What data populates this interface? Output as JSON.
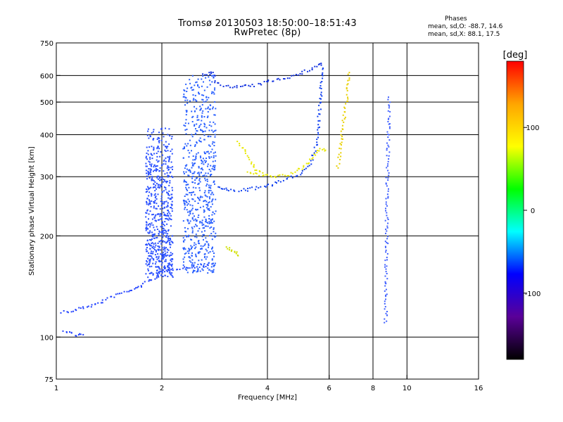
{
  "chart_data": {
    "type": "scatter",
    "title": "Tromsø 20130503 18:50:00–18:51:43",
    "subtitle": "RwPretec (8p)",
    "xlabel": "Frequency [MHz]",
    "ylabel": "Stationary phase Virtual Height [km]",
    "xscale": "log",
    "yscale": "log",
    "xlim": [
      1,
      16
    ],
    "ylim": [
      75,
      750
    ],
    "xticks": [
      1,
      2,
      4,
      6,
      8,
      10,
      16
    ],
    "xtick_labels": [
      "1",
      "2",
      "4",
      "6",
      "8",
      "10",
      "16"
    ],
    "xgrid": [
      2,
      4,
      6,
      8,
      10
    ],
    "yticks": [
      75,
      100,
      200,
      300,
      400,
      500,
      600,
      750
    ],
    "ytick_labels": [
      "75",
      "100",
      "200",
      "300",
      "400",
      "500",
      "600",
      "750"
    ],
    "ygrid": [
      100,
      200,
      300,
      400,
      500,
      600
    ],
    "grid": true,
    "colorbar": {
      "label": "[deg]",
      "range": [
        -180,
        180
      ],
      "ticks": [
        100,
        0,
        -100
      ],
      "tick_labels": [
        "100",
        "0",
        "-100"
      ],
      "colors": [
        "#ff0000",
        "#ffa500",
        "#ffff00",
        "#00ff00",
        "#00ffff",
        "#0000ff",
        "#5a0098",
        "#000000"
      ]
    },
    "stats": {
      "header": "Phases",
      "o_mode": "mean, sd,O: -88.7, 14.6",
      "x_mode": "mean, sd,X:  88.1, 17.5"
    },
    "series": [
      {
        "trace": [
          [
            1.04,
            119
          ],
          [
            1.1,
            119
          ],
          [
            1.2,
            123
          ],
          [
            1.3,
            125
          ],
          [
            1.4,
            130
          ],
          [
            1.5,
            134
          ],
          [
            1.6,
            137
          ],
          [
            1.7,
            140
          ],
          [
            1.8,
            145
          ],
          [
            1.9,
            150
          ],
          [
            2.0,
            156
          ],
          [
            2.2,
            160
          ],
          [
            2.5,
            162
          ],
          [
            2.8,
            165
          ]
        ],
        "color": "#2040ff"
      },
      {
        "trace": [
          [
            1.05,
            104
          ],
          [
            1.1,
            103
          ],
          [
            1.15,
            101
          ],
          [
            1.2,
            103
          ]
        ],
        "color": "#2040ff"
      },
      {
        "trace": [
          [
            2.9,
            278
          ],
          [
            3.0,
            275
          ],
          [
            3.2,
            273
          ],
          [
            3.5,
            274
          ],
          [
            4.0,
            282
          ],
          [
            4.5,
            293
          ],
          [
            5.0,
            308
          ],
          [
            5.3,
            330
          ],
          [
            5.5,
            370
          ],
          [
            5.6,
            430
          ],
          [
            5.65,
            500
          ],
          [
            5.7,
            560
          ],
          [
            5.72,
            640
          ]
        ],
        "color": "#1040f0"
      },
      {
        "trace": [
          [
            2.6,
            605
          ],
          [
            2.75,
            610
          ],
          [
            2.8,
            605
          ],
          [
            2.85,
            570
          ],
          [
            3.0,
            560
          ],
          [
            3.3,
            555
          ],
          [
            3.7,
            560
          ],
          [
            4.0,
            575
          ],
          [
            4.3,
            585
          ],
          [
            4.8,
            600
          ],
          [
            5.2,
            620
          ],
          [
            5.6,
            645
          ],
          [
            5.75,
            650
          ]
        ],
        "color": "#1030e0"
      },
      {
        "trace": [
          [
            3.5,
            310
          ],
          [
            3.8,
            303
          ],
          [
            4.2,
            300
          ],
          [
            4.6,
            304
          ],
          [
            5.0,
            318
          ],
          [
            5.3,
            335
          ],
          [
            5.5,
            355
          ],
          [
            5.7,
            362
          ],
          [
            5.9,
            360
          ]
        ],
        "color": "#e8e800"
      },
      {
        "trace": [
          [
            3.3,
            380
          ],
          [
            3.45,
            360
          ],
          [
            3.6,
            330
          ],
          [
            3.75,
            312
          ],
          [
            3.9,
            305
          ]
        ],
        "color": "#e8e800"
      },
      {
        "trace": [
          [
            6.35,
            320
          ],
          [
            6.45,
            360
          ],
          [
            6.55,
            420
          ],
          [
            6.65,
            470
          ],
          [
            6.75,
            520
          ],
          [
            6.8,
            560
          ],
          [
            6.85,
            620
          ]
        ],
        "color": "#e8d000"
      },
      {
        "trace": [
          [
            3.05,
            185
          ],
          [
            3.15,
            183
          ],
          [
            3.25,
            178
          ],
          [
            3.3,
            174
          ]
        ],
        "color": "#d0e000"
      },
      {
        "trace": [
          [
            8.7,
            110
          ],
          [
            8.75,
            200
          ],
          [
            8.8,
            300
          ],
          [
            8.85,
            380
          ],
          [
            8.9,
            520
          ]
        ],
        "color": "#4060ff"
      }
    ],
    "bands": [
      {
        "x": [
          1.8,
          2.15
        ],
        "y": [
          150,
          420
        ],
        "color": "#2a50ff"
      },
      {
        "x": [
          2.3,
          2.85
        ],
        "y": [
          155,
          600
        ],
        "color": "#2a60ff"
      }
    ]
  }
}
